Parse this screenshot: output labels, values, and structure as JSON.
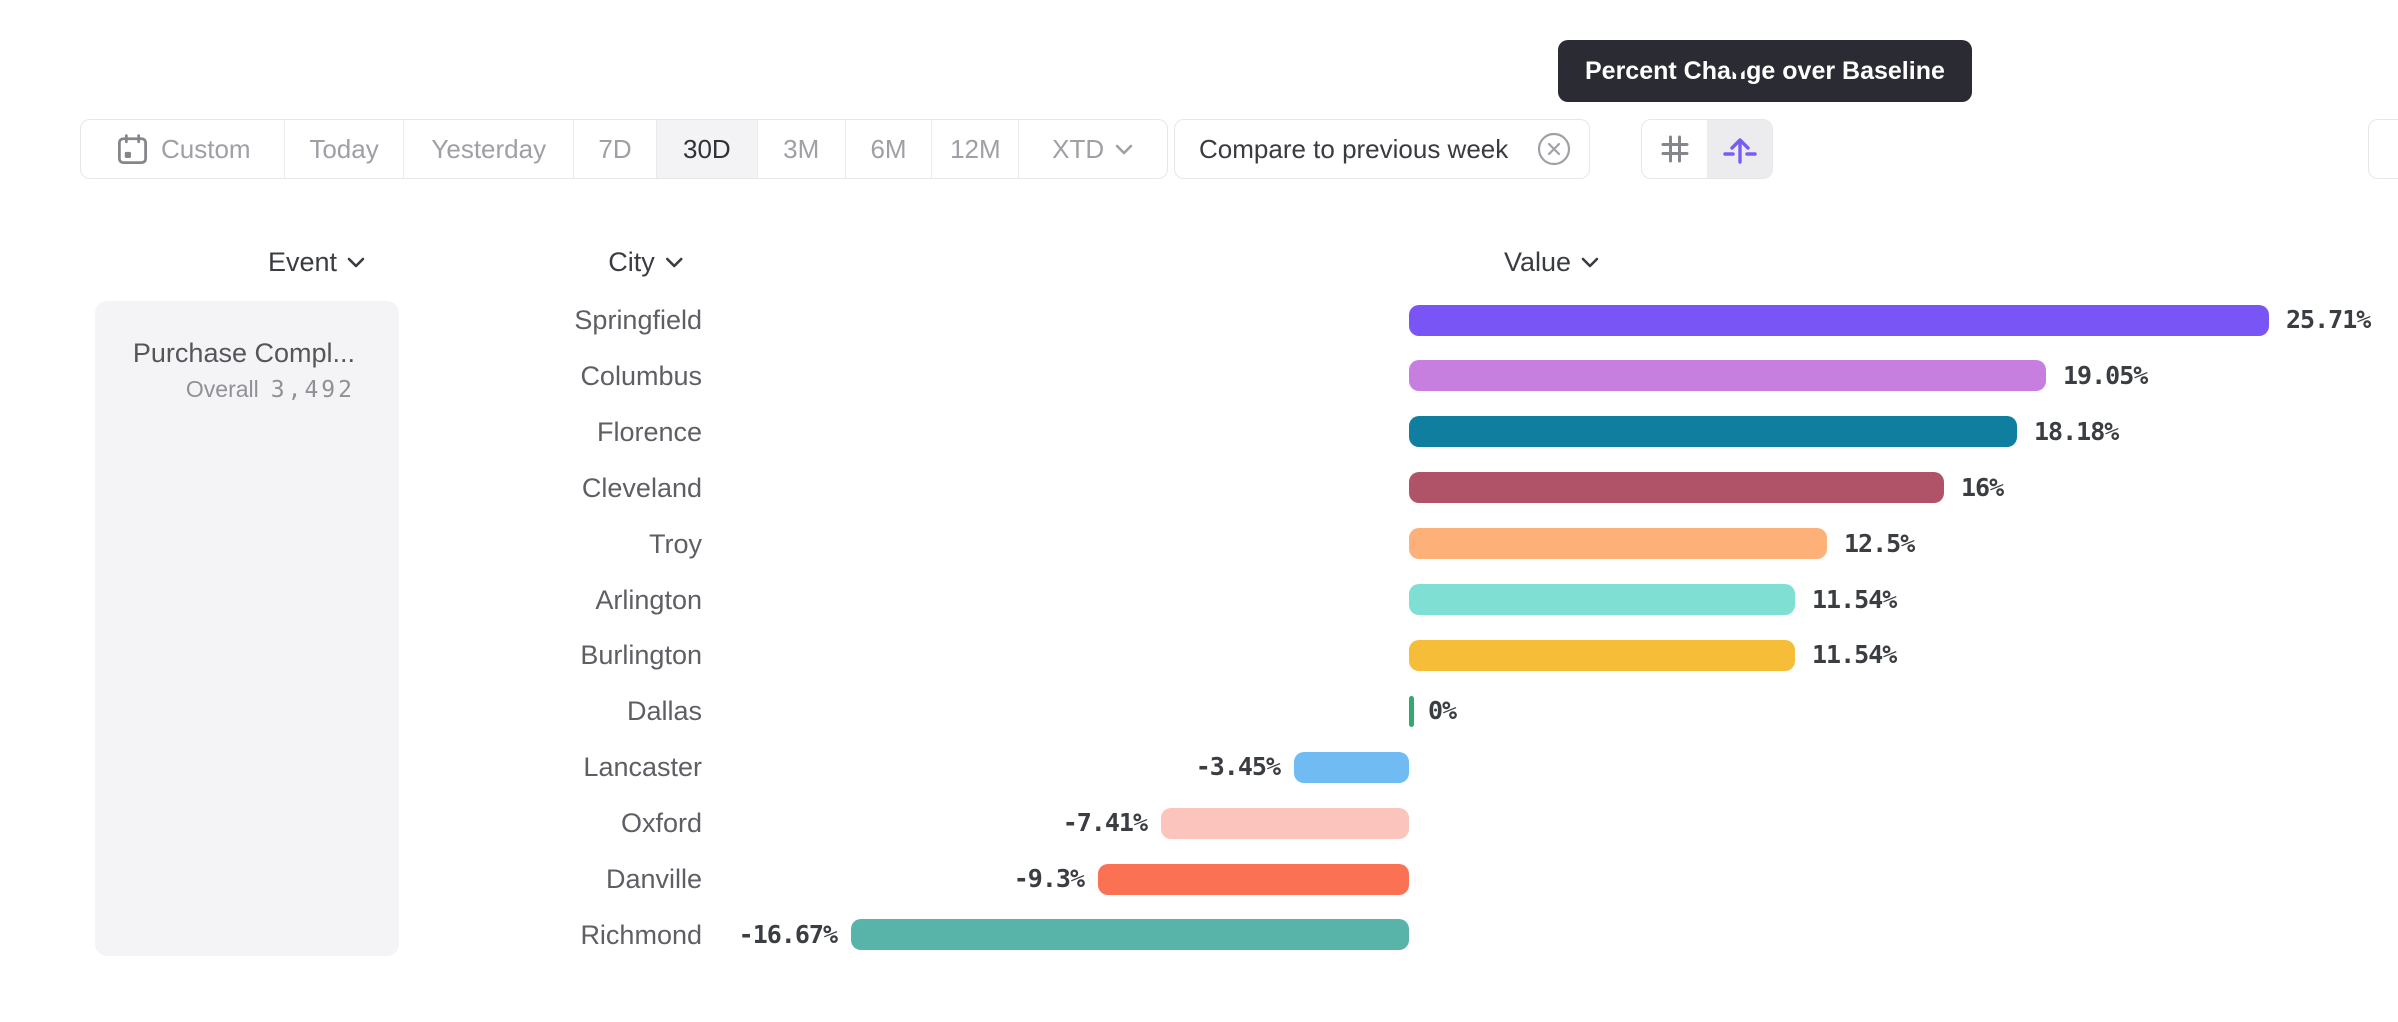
{
  "tooltip": {
    "text": "Percent Change over Baseline"
  },
  "toolbar": {
    "date_ranges": [
      {
        "label": "Custom",
        "icon": "calendar-icon"
      },
      {
        "label": "Today"
      },
      {
        "label": "Yesterday"
      },
      {
        "label": "7D"
      },
      {
        "label": "30D"
      },
      {
        "label": "3M"
      },
      {
        "label": "6M"
      },
      {
        "label": "12M"
      },
      {
        "label": "XTD",
        "icon": "chevron-down-icon"
      }
    ],
    "selected_range": "30D",
    "compare": {
      "label": "Compare to previous week",
      "icon": "close-circle-icon"
    },
    "view_toggle": [
      {
        "icon": "grid-icon",
        "selected": false
      },
      {
        "icon": "baseline-arrow-icon",
        "selected": true
      }
    ]
  },
  "chart_data": {
    "type": "bar",
    "orientation": "horizontal",
    "columns": [
      {
        "label": "Event"
      },
      {
        "label": "City"
      },
      {
        "label": "Value"
      }
    ],
    "event_panel": {
      "name": "Purchase Compl...",
      "overall_label": "Overall",
      "overall_value": "3,492"
    },
    "categories": [
      "Springfield",
      "Columbus",
      "Florence",
      "Cleveland",
      "Troy",
      "Arlington",
      "Burlington",
      "Dallas",
      "Lancaster",
      "Oxford",
      "Danville",
      "Richmond"
    ],
    "values": [
      25.71,
      19.05,
      18.18,
      16,
      12.5,
      11.54,
      11.54,
      0,
      -3.45,
      -7.41,
      -9.3,
      -16.67
    ],
    "value_labels": [
      "25.71%",
      "19.05%",
      "18.18%",
      "16%",
      "12.5%",
      "11.54%",
      "11.54%",
      "0%",
      "-3.45%",
      "-7.41%",
      "-9.3%",
      "-16.67%"
    ],
    "bar_colors": [
      "#7A55F6",
      "#C77FDF",
      "#107E9F",
      "#B05369",
      "#FDB078",
      "#7FDFD3",
      "#F5BD38",
      "#34A873",
      "#6FBBF2",
      "#FBC4BC",
      "#FA7154",
      "#58B3A9"
    ],
    "zero_tick_color": "#34A873",
    "unit": "%",
    "xlim": [
      -16.67,
      25.71
    ],
    "baseline": 0,
    "grid": "off",
    "legend": "none"
  },
  "colors": {
    "accent_purple": "#7A5CF5",
    "tooltip_bg": "#2B2C33",
    "muted_text": "#9EA0A5",
    "dark_text": "#2F3237",
    "border": "#E6E7EA"
  }
}
